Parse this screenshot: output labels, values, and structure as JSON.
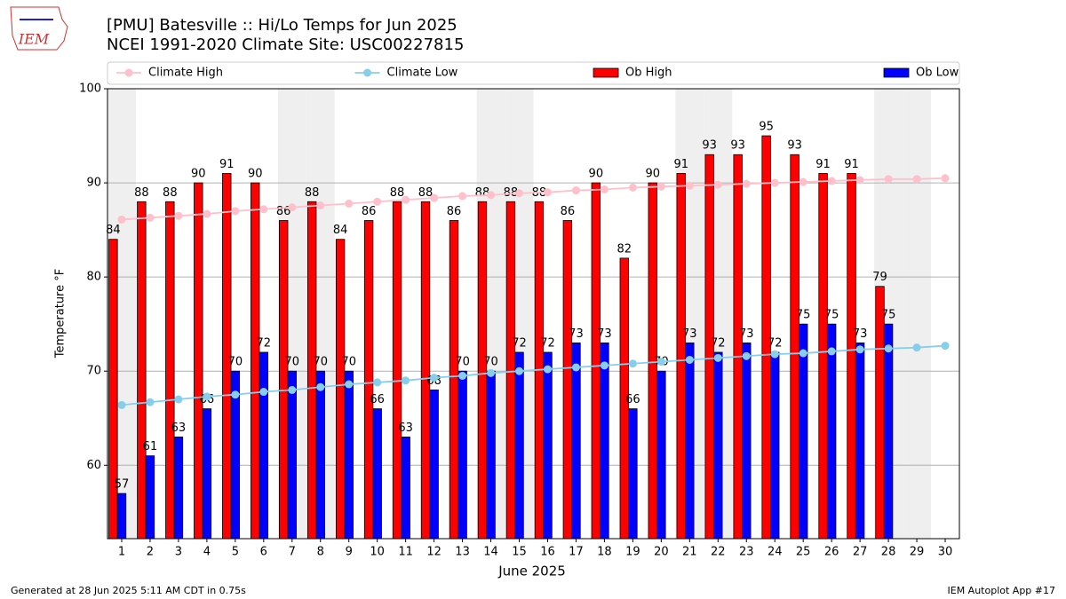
{
  "chart_data": {
    "type": "bar",
    "title": "[PMU] Batesville :: Hi/Lo Temps for Jun 2025",
    "subtitle": "NCEI 1991-2020 Climate Site: USC00227815",
    "x_label": "June 2025",
    "y_label": "Temperature °F",
    "x": [
      1,
      2,
      3,
      4,
      5,
      6,
      7,
      8,
      9,
      10,
      11,
      12,
      13,
      14,
      15,
      16,
      17,
      18,
      19,
      20,
      21,
      22,
      23,
      24,
      25,
      26,
      27,
      28,
      29,
      30
    ],
    "xlim": [
      0.5,
      30.5
    ],
    "xticks": [
      1,
      2,
      3,
      4,
      5,
      6,
      7,
      8,
      9,
      10,
      11,
      12,
      13,
      14,
      15,
      16,
      17,
      18,
      19,
      20,
      21,
      22,
      23,
      24,
      25,
      26,
      27,
      28,
      29,
      30
    ],
    "ylim": [
      52.2,
      100
    ],
    "yticks": [
      60,
      70,
      80,
      90,
      100
    ],
    "grid": true,
    "legend": "top",
    "shaded_days": [
      1,
      7,
      8,
      14,
      15,
      21,
      22,
      28,
      29
    ],
    "series": [
      {
        "name": "Climate High",
        "type": "line",
        "color": "#ffc0cb",
        "values": [
          86.1,
          86.3,
          86.5,
          86.7,
          87.0,
          87.2,
          87.4,
          87.6,
          87.8,
          88.0,
          88.2,
          88.4,
          88.6,
          88.7,
          88.9,
          89.0,
          89.2,
          89.3,
          89.5,
          89.6,
          89.7,
          89.8,
          89.9,
          90.0,
          90.1,
          90.2,
          90.3,
          90.4,
          90.4,
          90.5
        ]
      },
      {
        "name": "Climate Low",
        "type": "line",
        "color": "#87ceeb",
        "values": [
          66.4,
          66.7,
          67.0,
          67.3,
          67.5,
          67.8,
          68.0,
          68.3,
          68.6,
          68.8,
          69.0,
          69.3,
          69.5,
          69.8,
          70.0,
          70.2,
          70.4,
          70.6,
          70.8,
          71.0,
          71.2,
          71.4,
          71.6,
          71.8,
          71.9,
          72.1,
          72.3,
          72.4,
          72.5,
          72.7
        ]
      },
      {
        "name": "Ob High",
        "type": "bar",
        "color": "#ff0000",
        "values": [
          84,
          88,
          88,
          90,
          91,
          90,
          86,
          88,
          84,
          86,
          88,
          88,
          86,
          88,
          88,
          88,
          86,
          90,
          82,
          90,
          91,
          93,
          93,
          95,
          93,
          91,
          91,
          79,
          null,
          null
        ]
      },
      {
        "name": "Ob Low",
        "type": "bar",
        "color": "#0000ff",
        "values": [
          57,
          61,
          63,
          66,
          70,
          72,
          70,
          70,
          70,
          66,
          63,
          68,
          70,
          70,
          72,
          72,
          73,
          73,
          66,
          70,
          73,
          72,
          73,
          72,
          75,
          75,
          73,
          75,
          null,
          null
        ]
      }
    ]
  },
  "logo": "IEM",
  "footer_left": "Generated at 28 Jun 2025 5:11 AM CDT in 0.75s",
  "footer_right": "IEM Autoplot App #17"
}
